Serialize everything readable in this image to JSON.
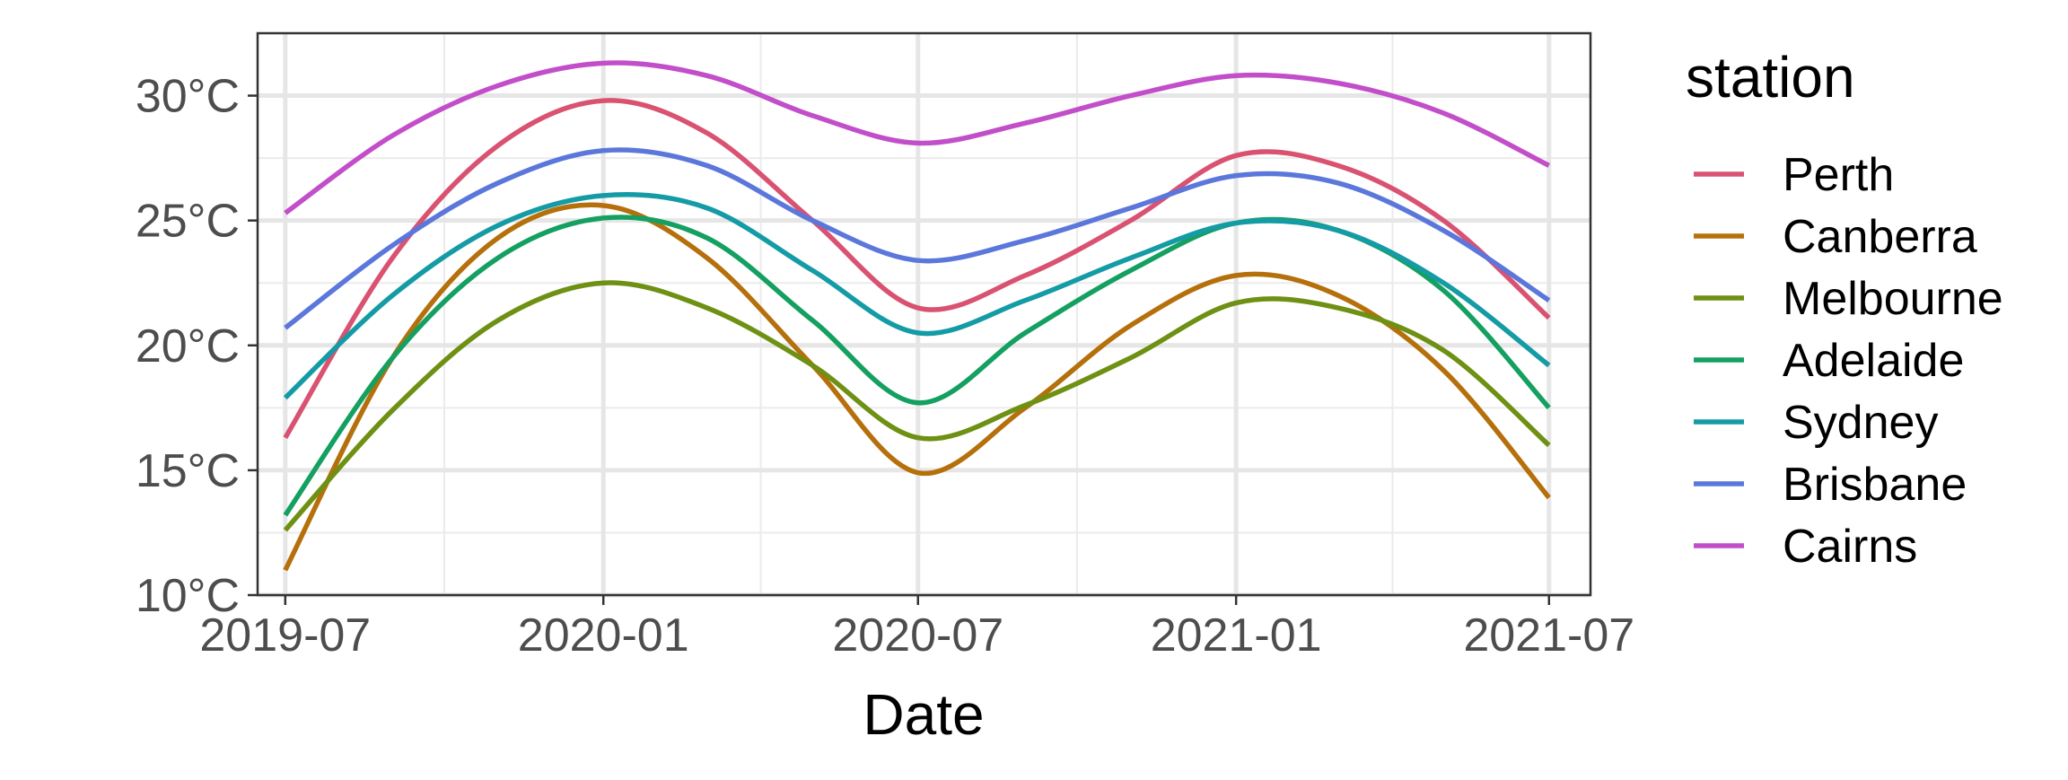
{
  "chart_data": {
    "type": "line",
    "title": "",
    "xlabel": "Date",
    "ylabel": "",
    "x_ticks": [
      "2019-07",
      "2020-01",
      "2020-07",
      "2021-01",
      "2021-07"
    ],
    "y_ticks": [
      "10°C",
      "15°C",
      "20°C",
      "25°C",
      "30°C"
    ],
    "ylim": [
      10,
      32.5
    ],
    "xlim": [
      "2019-06-15",
      "2021-07-25"
    ],
    "grid": true,
    "legend": {
      "title": "station",
      "position": "right"
    },
    "x": [
      "2019-07",
      "2019-09",
      "2019-11",
      "2020-01",
      "2020-03",
      "2020-05",
      "2020-07",
      "2020-09",
      "2020-11",
      "2021-01",
      "2021-03",
      "2021-05",
      "2021-07"
    ],
    "series": [
      {
        "name": "Perth",
        "color": "#D95271",
        "values": [
          16.3,
          23.5,
          28.0,
          29.8,
          28.5,
          25.0,
          21.5,
          22.8,
          25.0,
          27.6,
          27.2,
          25.0,
          21.1
        ]
      },
      {
        "name": "Canberra",
        "color": "#B5700C",
        "values": [
          11.0,
          19.5,
          24.3,
          25.6,
          23.5,
          19.2,
          14.9,
          17.5,
          20.8,
          22.8,
          22.0,
          19.0,
          13.9
        ]
      },
      {
        "name": "Melbourne",
        "color": "#6E9013",
        "values": [
          12.6,
          17.4,
          21.0,
          22.5,
          21.5,
          19.2,
          16.3,
          17.6,
          19.5,
          21.7,
          21.5,
          19.8,
          16.0
        ]
      },
      {
        "name": "Adelaide",
        "color": "#14A060",
        "values": [
          13.2,
          19.5,
          23.5,
          25.1,
          24.3,
          21.0,
          17.7,
          20.5,
          23.0,
          24.9,
          24.6,
          22.2,
          17.5
        ]
      },
      {
        "name": "Sydney",
        "color": "#149BA5",
        "values": [
          17.9,
          22.0,
          24.8,
          26.0,
          25.5,
          23.0,
          20.5,
          21.8,
          23.5,
          24.9,
          24.6,
          22.5,
          19.2
        ]
      },
      {
        "name": "Brisbane",
        "color": "#5B77DB",
        "values": [
          20.7,
          24.0,
          26.5,
          27.8,
          27.2,
          25.0,
          23.4,
          24.2,
          25.5,
          26.8,
          26.5,
          24.6,
          21.8
        ]
      },
      {
        "name": "Cairns",
        "color": "#C24FC9",
        "values": [
          25.3,
          28.4,
          30.4,
          31.3,
          30.8,
          29.2,
          28.1,
          28.9,
          30.0,
          30.8,
          30.5,
          29.3,
          27.2
        ]
      }
    ]
  }
}
